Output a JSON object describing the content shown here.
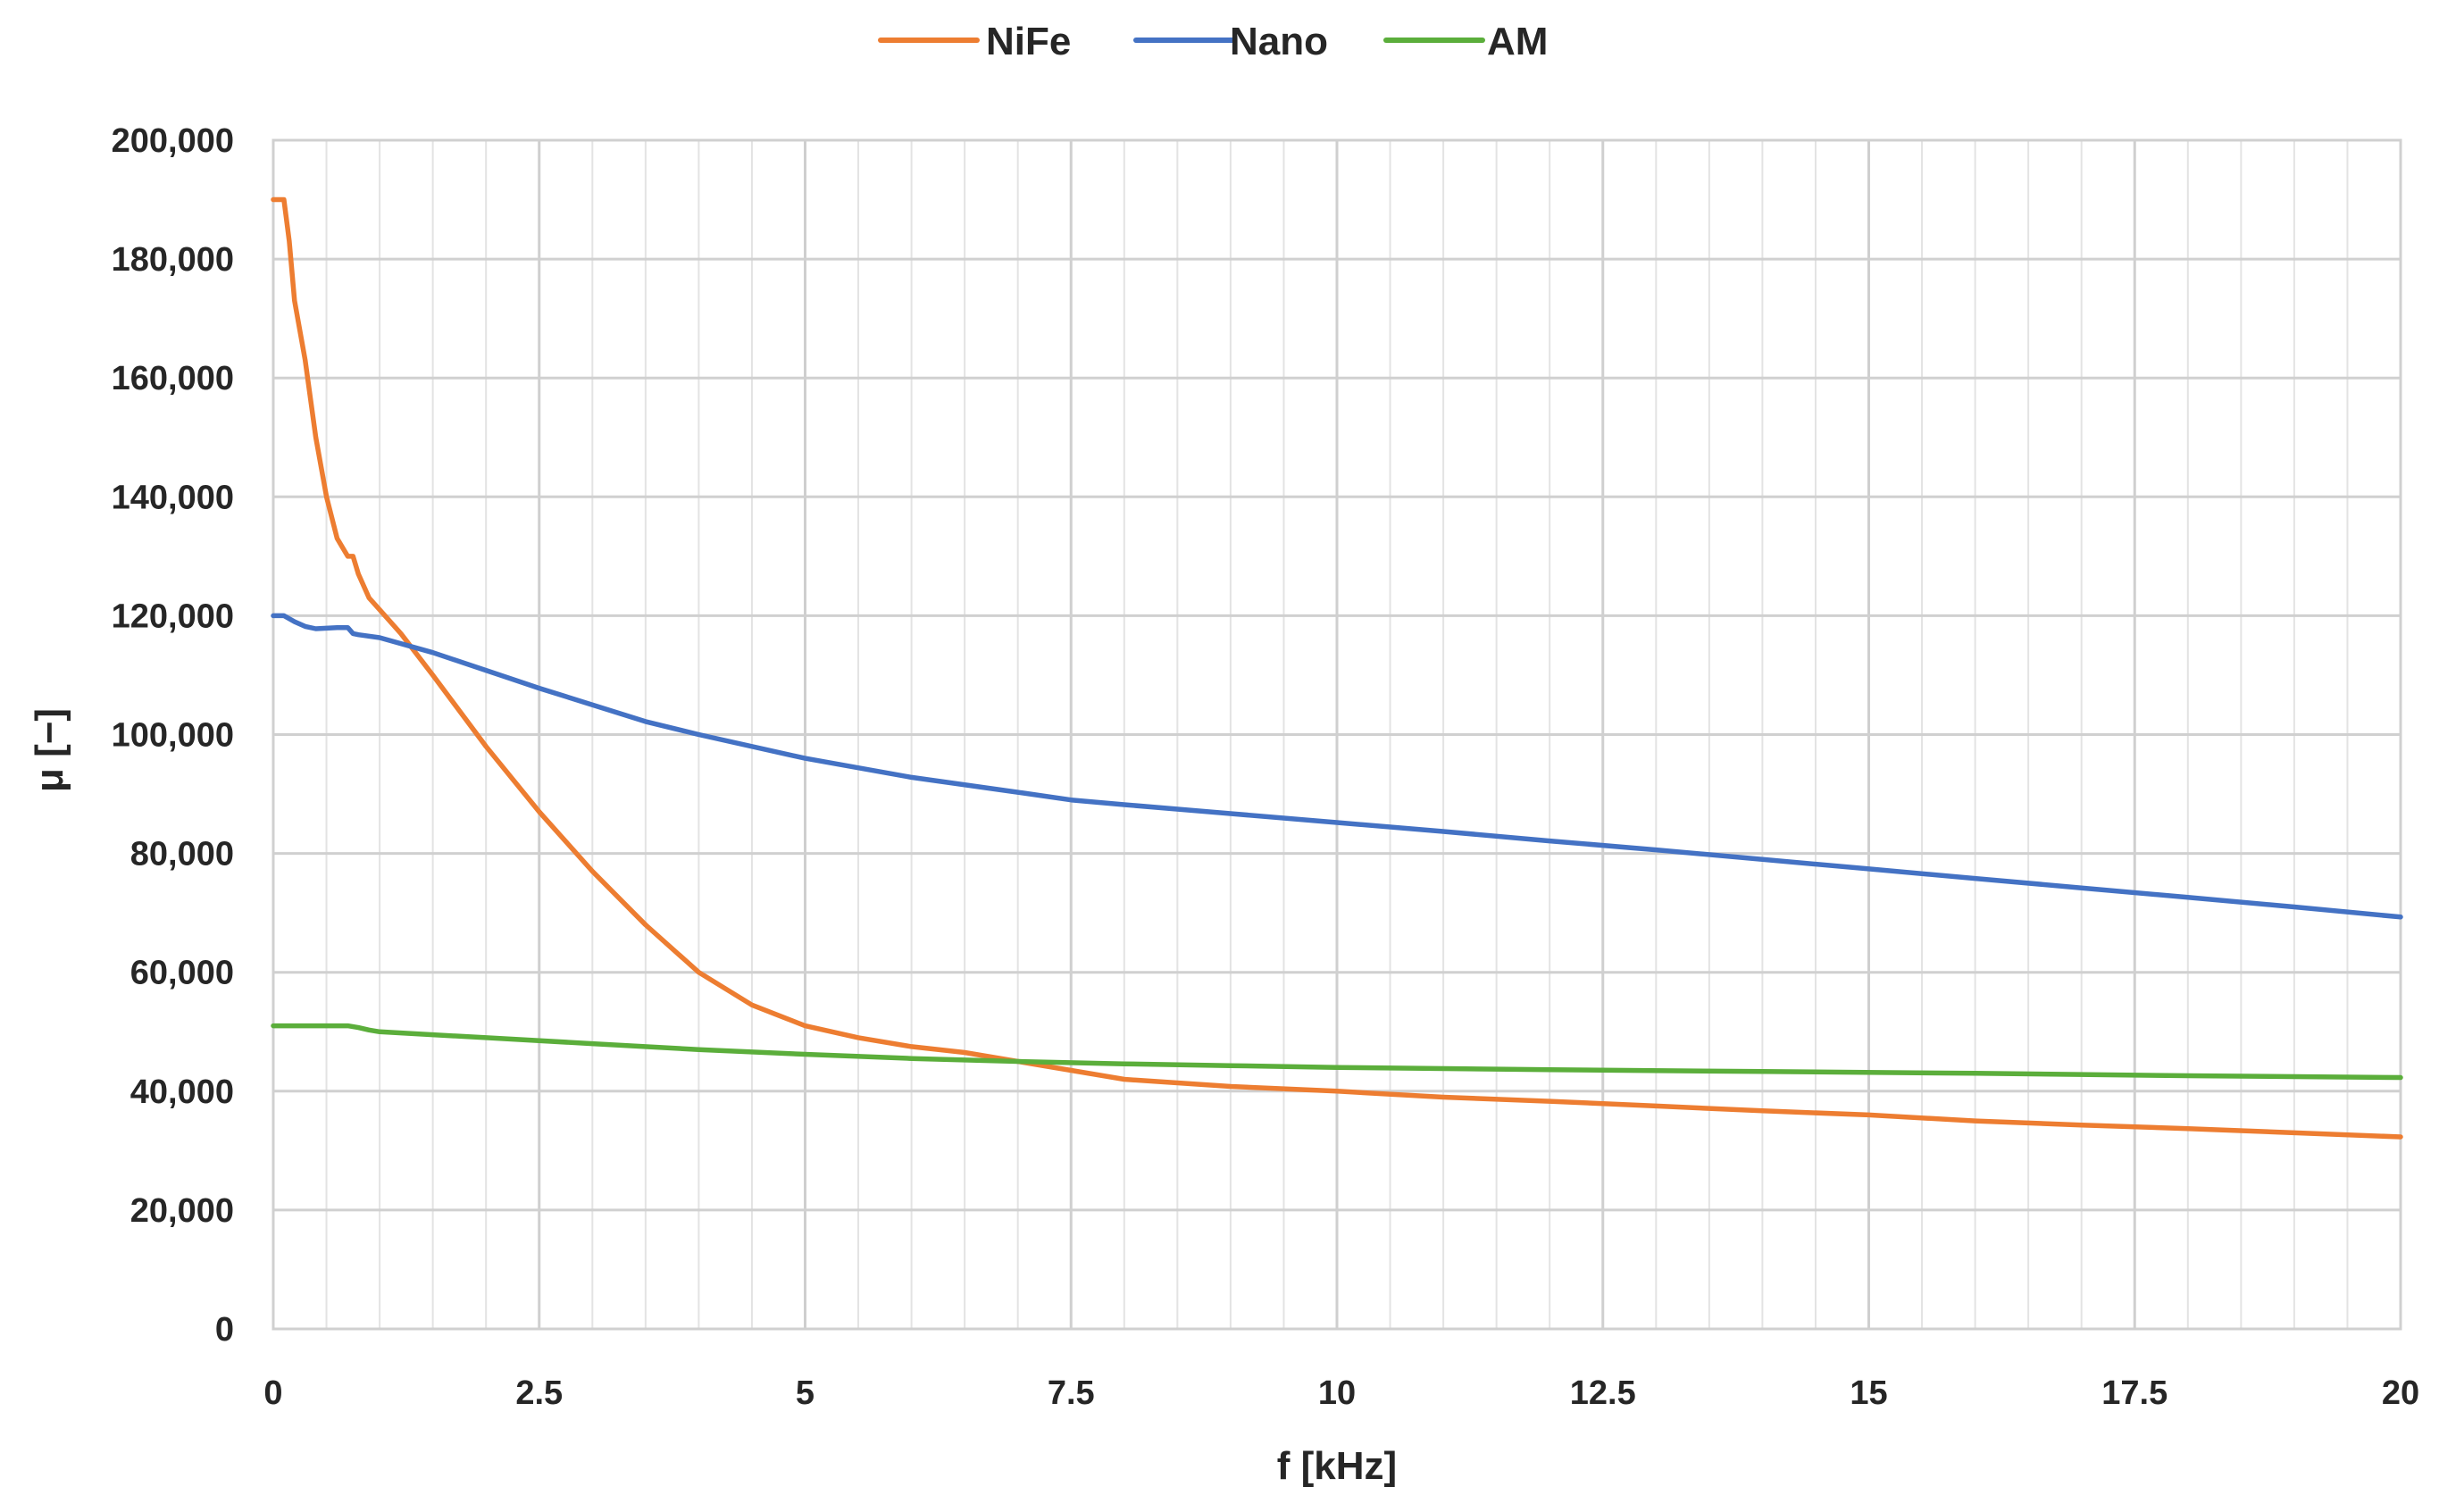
{
  "chart_data": {
    "type": "line",
    "xlabel": "f [kHz]",
    "ylabel": "μ [−]",
    "xlim": [
      0,
      20
    ],
    "ylim": [
      0,
      200000
    ],
    "x_ticks": [
      0,
      2.5,
      5,
      7.5,
      10,
      12.5,
      15,
      17.5,
      20
    ],
    "x_tick_labels": [
      "0",
      "2.5",
      "5",
      "7.5",
      "10",
      "12.5",
      "15",
      "17.5",
      "20"
    ],
    "y_ticks": [
      0,
      20000,
      40000,
      60000,
      80000,
      100000,
      120000,
      140000,
      160000,
      180000,
      200000
    ],
    "y_tick_labels": [
      "0",
      "20,000",
      "40,000",
      "60,000",
      "80,000",
      "100,000",
      "120,000",
      "140,000",
      "160,000",
      "180,000",
      "200,000"
    ],
    "x_minor_step": 0.5,
    "grid": true,
    "legend_position": "top-center",
    "series": [
      {
        "name": "NiFe",
        "color": "#ED7D31",
        "x": [
          0,
          0.05,
          0.1,
          0.15,
          0.2,
          0.3,
          0.4,
          0.5,
          0.6,
          0.7,
          0.75,
          0.8,
          0.9,
          1.0,
          1.2,
          1.5,
          2.0,
          2.5,
          3.0,
          3.5,
          4.0,
          4.5,
          5.0,
          5.5,
          6.0,
          6.5,
          7.0,
          7.5,
          8.0,
          9.0,
          10.0,
          11.0,
          12.0,
          13.0,
          14.0,
          15.0,
          16.0,
          17.0,
          18.0,
          19.0,
          20.0
        ],
        "y": [
          190000,
          190000,
          190000,
          183000,
          173000,
          163000,
          150000,
          140000,
          133000,
          130000,
          130000,
          127000,
          123000,
          121000,
          117000,
          110000,
          98000,
          87000,
          77000,
          68000,
          60000,
          54500,
          51000,
          49000,
          47500,
          46500,
          45000,
          43500,
          42000,
          40800,
          40000,
          39000,
          38300,
          37500,
          36700,
          36000,
          35000,
          34300,
          33700,
          33000,
          32300
        ]
      },
      {
        "name": "Nano",
        "color": "#4472C4",
        "x": [
          0,
          0.1,
          0.2,
          0.3,
          0.4,
          0.5,
          0.6,
          0.65,
          0.7,
          0.75,
          0.8,
          1.0,
          1.5,
          2.0,
          2.5,
          3.0,
          3.5,
          4.0,
          5.0,
          6.0,
          7.0,
          7.5,
          8.0,
          9.0,
          10.0,
          11.0,
          12.0,
          13.0,
          14.0,
          15.0,
          16.0,
          17.0,
          18.0,
          19.0,
          20.0
        ],
        "y": [
          120000,
          120000,
          119000,
          118200,
          117800,
          117900,
          118000,
          118000,
          118000,
          117000,
          116800,
          116300,
          113800,
          110800,
          107800,
          105000,
          102200,
          100000,
          96000,
          92800,
          90300,
          89000,
          88200,
          86700,
          85200,
          83700,
          82100,
          80600,
          79000,
          77400,
          75800,
          74200,
          72600,
          71000,
          69300
        ]
      },
      {
        "name": "AM",
        "color": "#5BAE3B",
        "x": [
          0,
          0.2,
          0.4,
          0.6,
          0.7,
          0.8,
          0.9,
          1.0,
          1.5,
          2.0,
          3.0,
          4.0,
          5.0,
          6.0,
          7.0,
          8.0,
          9.0,
          10.0,
          12.0,
          14.0,
          16.0,
          18.0,
          20.0
        ],
        "y": [
          51000,
          51000,
          51000,
          51000,
          51000,
          50700,
          50300,
          50000,
          49500,
          49000,
          48000,
          47000,
          46200,
          45500,
          45000,
          44600,
          44300,
          44000,
          43600,
          43300,
          43000,
          42600,
          42300
        ]
      }
    ]
  }
}
